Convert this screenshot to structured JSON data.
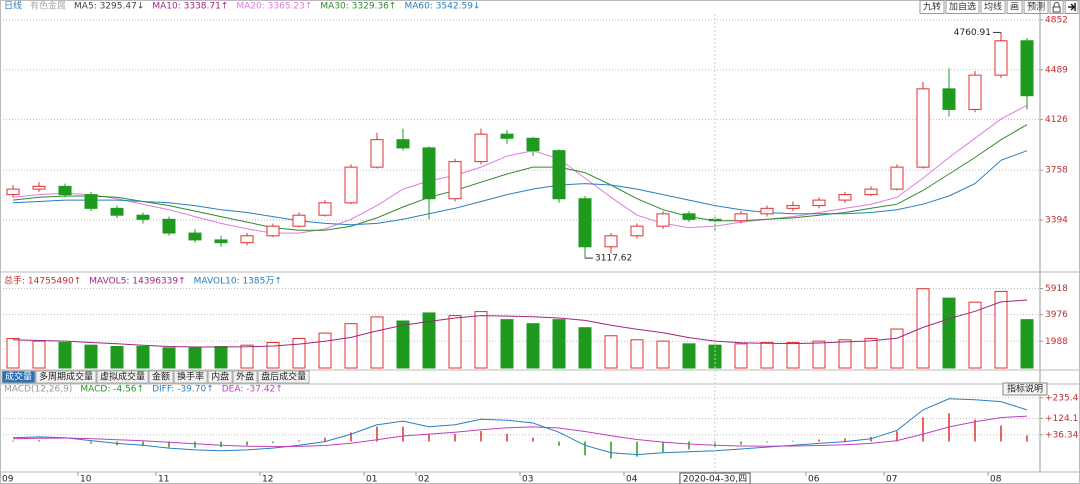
{
  "header": {
    "period": "日线",
    "sector": "有色金属",
    "legend": [
      {
        "text": "MA5: 3295.47↓",
        "color": "#444444"
      },
      {
        "text": "MA10: 3338.71↑",
        "color": "#a0267e"
      },
      {
        "text": "MA20: 3365.23↑",
        "color": "#e07ae0"
      },
      {
        "text": "MA30: 3329.36↑",
        "color": "#2e8b2e"
      },
      {
        "text": "MA60: 3542.59↓",
        "color": "#2a7fc0"
      }
    ]
  },
  "toolbar": [
    "九转",
    "加自选",
    "均线",
    "画",
    "预测"
  ],
  "tabs": [
    "成交量",
    "多周期成交量",
    "虚拟成交量",
    "金额",
    "换手率",
    "内盘",
    "外盘",
    "盘后成交量"
  ],
  "button": "指标说明",
  "cursor_label": "2020-04-30,四",
  "chart_data": [
    {
      "type": "candlestick",
      "up_color": "#e03030",
      "down_color": "#1f9a1f",
      "categories": [
        "09",
        null,
        null,
        "10",
        null,
        null,
        "11",
        null,
        null,
        null,
        "12",
        null,
        null,
        null,
        "01",
        null,
        "02",
        null,
        null,
        null,
        "03",
        null,
        null,
        null,
        "04",
        null,
        null,
        null,
        null,
        null,
        null,
        "06",
        null,
        null,
        "07",
        null,
        null,
        null,
        "08",
        null
      ],
      "candles": [
        [
          3580,
          3650,
          3560,
          3620
        ],
        [
          3620,
          3670,
          3600,
          3640
        ],
        [
          3640,
          3660,
          3560,
          3580
        ],
        [
          3580,
          3600,
          3460,
          3480
        ],
        [
          3480,
          3500,
          3410,
          3430
        ],
        [
          3430,
          3450,
          3370,
          3400
        ],
        [
          3400,
          3420,
          3280,
          3300
        ],
        [
          3300,
          3330,
          3230,
          3250
        ],
        [
          3250,
          3280,
          3200,
          3230
        ],
        [
          3230,
          3300,
          3210,
          3280
        ],
        [
          3280,
          3370,
          3270,
          3350
        ],
        [
          3350,
          3450,
          3340,
          3430
        ],
        [
          3430,
          3540,
          3420,
          3520
        ],
        [
          3520,
          3800,
          3510,
          3780
        ],
        [
          3780,
          4030,
          3770,
          3980
        ],
        [
          3980,
          4060,
          3900,
          3920
        ],
        [
          3920,
          3930,
          3400,
          3550
        ],
        [
          3550,
          3840,
          3530,
          3820
        ],
        [
          3820,
          4060,
          3800,
          4020
        ],
        [
          4020,
          4050,
          3950,
          3990
        ],
        [
          3990,
          4000,
          3860,
          3900
        ],
        [
          3900,
          3910,
          3520,
          3550
        ],
        [
          3550,
          3570,
          3117.62,
          3200
        ],
        [
          3200,
          3300,
          3150,
          3280
        ],
        [
          3280,
          3370,
          3260,
          3350
        ],
        [
          3350,
          3460,
          3330,
          3440
        ],
        [
          3440,
          3460,
          3380,
          3400
        ],
        [
          3400,
          3420,
          3310,
          3390
        ],
        [
          3390,
          3460,
          3370,
          3440
        ],
        [
          3440,
          3500,
          3420,
          3480
        ],
        [
          3480,
          3530,
          3460,
          3500
        ],
        [
          3500,
          3560,
          3480,
          3540
        ],
        [
          3540,
          3600,
          3520,
          3580
        ],
        [
          3580,
          3640,
          3570,
          3620
        ],
        [
          3620,
          3800,
          3610,
          3780
        ],
        [
          3780,
          4400,
          3770,
          4350
        ],
        [
          4350,
          4500,
          4150,
          4200
        ],
        [
          4200,
          4480,
          4180,
          4450
        ],
        [
          4450,
          4760.91,
          4430,
          4700
        ],
        [
          4700,
          4720,
          4200,
          4300
        ]
      ],
      "series": [
        {
          "name": "MA20",
          "color": "#e07ae0",
          "values": [
            3560,
            3580,
            3590,
            3580,
            3550,
            3510,
            3470,
            3420,
            3370,
            3330,
            3300,
            3300,
            3330,
            3400,
            3500,
            3620,
            3680,
            3720,
            3780,
            3860,
            3900,
            3840,
            3700,
            3560,
            3430,
            3370,
            3340,
            3350,
            3380,
            3400,
            3420,
            3450,
            3480,
            3510,
            3560,
            3700,
            3850,
            3990,
            4130,
            4230
          ]
        },
        {
          "name": "MA30",
          "color": "#2e8b2e",
          "values": [
            3540,
            3560,
            3570,
            3570,
            3560,
            3530,
            3500,
            3460,
            3420,
            3380,
            3340,
            3320,
            3320,
            3350,
            3410,
            3490,
            3560,
            3610,
            3670,
            3730,
            3780,
            3780,
            3740,
            3650,
            3550,
            3470,
            3420,
            3390,
            3390,
            3400,
            3410,
            3430,
            3450,
            3480,
            3510,
            3610,
            3730,
            3850,
            3980,
            4090
          ]
        },
        {
          "name": "MA60",
          "color": "#2a7fc0",
          "values": [
            3520,
            3530,
            3540,
            3540,
            3540,
            3530,
            3520,
            3500,
            3470,
            3450,
            3420,
            3390,
            3370,
            3360,
            3370,
            3400,
            3440,
            3480,
            3530,
            3580,
            3620,
            3650,
            3660,
            3650,
            3620,
            3580,
            3540,
            3500,
            3470,
            3450,
            3440,
            3440,
            3440,
            3450,
            3470,
            3510,
            3570,
            3660,
            3830,
            3900
          ]
        }
      ],
      "annotations": [
        {
          "candle": 38,
          "field": 1
        },
        {
          "candle": 22,
          "field": 2
        }
      ],
      "ylim": [
        3031,
        4895
      ],
      "yticks": [
        3394,
        3758,
        4126,
        4489,
        4852
      ],
      "grid": true
    },
    {
      "type": "volume",
      "legend": [
        {
          "text": "总手: 14755490↑",
          "color": "#c03030"
        },
        {
          "text": "MAVOL5: 14396339↑",
          "color": "#a0267e"
        },
        {
          "text": "MAVOL10: 1385万↑",
          "color": "#2a7fc0"
        }
      ],
      "values": [
        2200,
        2000,
        1900,
        1700,
        1600,
        1600,
        1500,
        1500,
        1600,
        1700,
        1900,
        2200,
        2600,
        3300,
        3800,
        3500,
        4100,
        3900,
        4200,
        3600,
        3300,
        3600,
        3000,
        2400,
        2100,
        2000,
        1800,
        1700,
        1800,
        1900,
        1900,
        2000,
        2100,
        2200,
        2900,
        5900,
        5200,
        4900,
        5700,
        3600
      ],
      "series": [
        {
          "name": "MAVOL5",
          "color": "#a0267e",
          "values": [
            2100,
            2050,
            2000,
            1900,
            1800,
            1700,
            1600,
            1560,
            1560,
            1580,
            1640,
            1780,
            1990,
            2280,
            2760,
            3180,
            3460,
            3720,
            3900,
            3860,
            3820,
            3720,
            3540,
            3180,
            2880,
            2620,
            2260,
            2000,
            1880,
            1840,
            1820,
            1860,
            1940,
            2020,
            2220,
            3020,
            3660,
            4220,
            4920,
            5060
          ]
        }
      ],
      "ylim": [
        0,
        6700
      ],
      "yticks": [
        1988,
        3976,
        5918
      ],
      "grid": true
    },
    {
      "type": "macd",
      "legend": [
        {
          "text": "MACD(12,26,9)",
          "color": "#999999"
        },
        {
          "text": "MACD: -4.56↑",
          "color": "#1f9a1f"
        },
        {
          "text": "DIFF: -39.70↑",
          "color": "#2a7fc0"
        },
        {
          "text": "DEA: -37.42↑",
          "color": "#c040c0"
        }
      ],
      "values": [
        5,
        7,
        1,
        -11,
        -20,
        -24,
        -31,
        -33,
        -30,
        -20,
        -8,
        6,
        21,
        49,
        80,
        80,
        40,
        40,
        56,
        41,
        21,
        -23,
        -74,
        -91,
        -81,
        -57,
        -42,
        -30,
        -16,
        -5,
        4,
        11,
        17,
        25,
        55,
        130,
        152,
        118,
        86,
        33
      ],
      "series": [
        {
          "name": "DIFF",
          "color": "#2a7fc0",
          "values": [
            20,
            25,
            20,
            5,
            -10,
            -20,
            -35,
            -45,
            -50,
            -45,
            -35,
            -20,
            0,
            40,
            90,
            110,
            80,
            90,
            120,
            115,
            100,
            50,
            -20,
            -60,
            -70,
            -60,
            -55,
            -50,
            -40,
            -30,
            -20,
            -10,
            0,
            15,
            60,
            170,
            230,
            225,
            215,
            170
          ]
        },
        {
          "name": "DEA",
          "color": "#c040c0",
          "values": [
            15,
            18,
            19,
            16,
            10,
            4,
            -4,
            -12,
            -20,
            -25,
            -27,
            -26,
            -21,
            -9,
            10,
            30,
            40,
            50,
            64,
            74,
            79,
            73,
            54,
            31,
            11,
            -3,
            -13,
            -20,
            -24,
            -25,
            -24,
            -21,
            -17,
            -10,
            5,
            40,
            78,
            107,
            129,
            137
          ]
        }
      ],
      "ylim": [
        -153,
        288
      ],
      "yticks": [
        {
          "value": 36.34,
          "label": "+36.34"
        },
        {
          "value": 124.1,
          "label": "+124.1"
        },
        {
          "value": 235.4,
          "label": "+235.4"
        }
      ],
      "grid": true
    }
  ]
}
